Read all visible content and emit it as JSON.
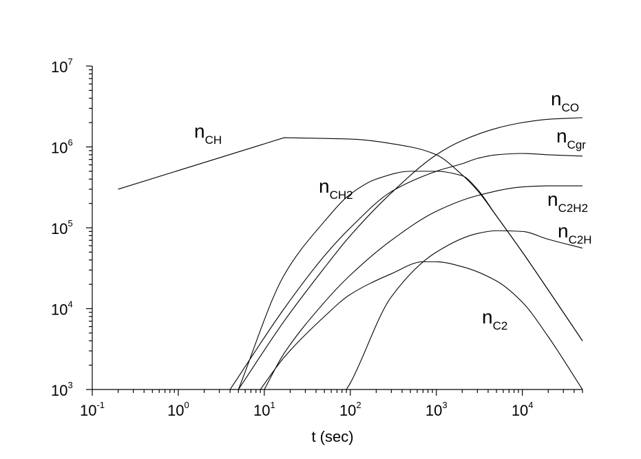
{
  "chart_data": {
    "type": "line",
    "title": "",
    "xlabel": "t (sec)",
    "ylabel": "",
    "xscale": "log",
    "yscale": "log",
    "xlim": [
      0.1,
      50000
    ],
    "ylim": [
      1000,
      10000000
    ],
    "grid": false,
    "x_ticks": [
      {
        "base": "10",
        "exp": "-1",
        "value": 0.1
      },
      {
        "base": "10",
        "exp": "0",
        "value": 1
      },
      {
        "base": "10",
        "exp": "1",
        "value": 10
      },
      {
        "base": "10",
        "exp": "2",
        "value": 100
      },
      {
        "base": "10",
        "exp": "3",
        "value": 1000
      },
      {
        "base": "10",
        "exp": "4",
        "value": 10000
      }
    ],
    "y_ticks": [
      {
        "base": "10",
        "exp": "3",
        "value": 1000
      },
      {
        "base": "10",
        "exp": "4",
        "value": 10000
      },
      {
        "base": "10",
        "exp": "5",
        "value": 100000
      },
      {
        "base": "10",
        "exp": "6",
        "value": 1000000
      },
      {
        "base": "10",
        "exp": "7",
        "value": 10000000
      }
    ],
    "series": [
      {
        "name": "n_CH",
        "label_main": "n",
        "label_sub": "CH",
        "x": [
          0.2,
          17,
          100,
          500,
          1000,
          2000,
          3000,
          5000,
          10000,
          20000,
          50000
        ],
        "y": [
          300000,
          1300000,
          1250000,
          1000000,
          800000,
          450000,
          290000,
          140000,
          50000,
          17000,
          4000
        ]
      },
      {
        "name": "n_CH2",
        "label_main": "n",
        "label_sub": "CH2",
        "x": [
          5,
          17,
          50,
          100,
          200,
          500,
          1000,
          2000,
          3000,
          5000,
          10000,
          20000,
          50000
        ],
        "y": [
          1000,
          26000,
          120000,
          260000,
          400000,
          500000,
          500000,
          440000,
          300000,
          140000,
          50000,
          17000,
          4000
        ]
      },
      {
        "name": "n_CO",
        "label_main": "n",
        "label_sub": "CO",
        "x": [
          5,
          17,
          50,
          100,
          300,
          1000,
          2000,
          5000,
          10000,
          20000,
          50000
        ],
        "y": [
          1000,
          7000,
          32000,
          80000,
          270000,
          800000,
          1200000,
          1700000,
          2000000,
          2200000,
          2300000
        ]
      },
      {
        "name": "n_Cgr",
        "label_main": "n",
        "label_sub": "Cgr",
        "x": [
          4,
          17,
          50,
          100,
          300,
          1000,
          2000,
          3000,
          5000,
          10000,
          20000,
          50000
        ],
        "y": [
          1000,
          10000,
          45000,
          100000,
          280000,
          500000,
          620000,
          720000,
          800000,
          830000,
          800000,
          770000
        ]
      },
      {
        "name": "n_C2H2",
        "label_main": "n",
        "label_sub": "C2H2",
        "x": [
          10,
          17,
          50,
          100,
          300,
          1000,
          3000,
          10000,
          20000,
          50000
        ],
        "y": [
          1000,
          2800,
          12000,
          26000,
          70000,
          160000,
          250000,
          320000,
          330000,
          330000
        ]
      },
      {
        "name": "n_C2H",
        "label_main": "n",
        "label_sub": "C2H",
        "x": [
          90,
          100,
          300,
          1000,
          3000,
          5000,
          10000,
          20000,
          50000
        ],
        "y": [
          1000,
          1200,
          14000,
          50000,
          85000,
          92000,
          90000,
          72000,
          56000
        ]
      },
      {
        "name": "n_C2",
        "label_main": "n",
        "label_sub": "C2",
        "x": [
          9,
          17,
          50,
          100,
          300,
          700,
          1000,
          2000,
          5000,
          10000,
          20000,
          50000
        ],
        "y": [
          1000,
          2500,
          8000,
          15000,
          27000,
          38000,
          38000,
          33000,
          22000,
          12000,
          4500,
          1000
        ]
      }
    ]
  }
}
